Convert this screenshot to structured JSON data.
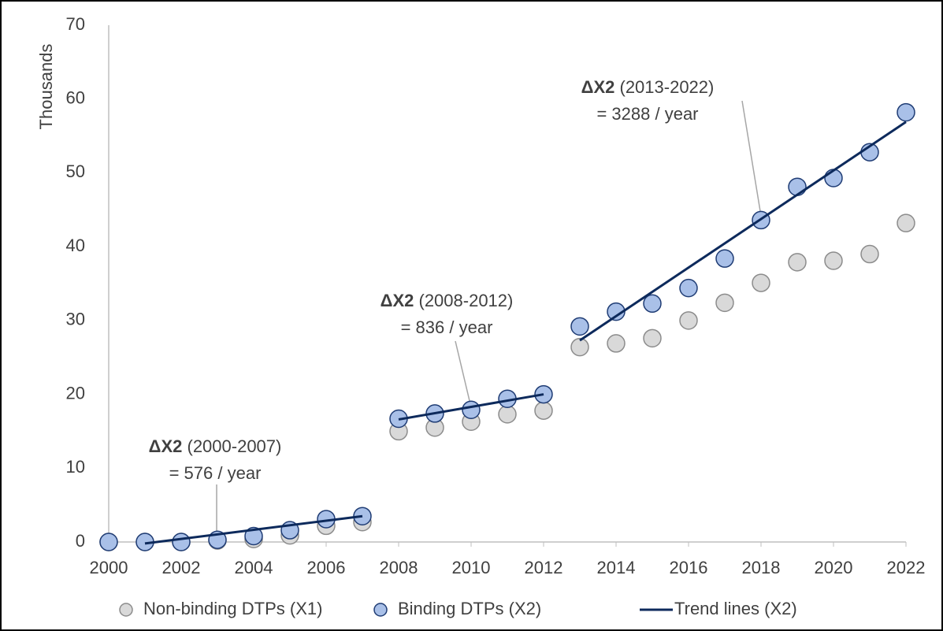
{
  "chart_data": {
    "type": "scatter",
    "ylabel": "Thousands",
    "xlim": [
      2000,
      2022
    ],
    "xticks": [
      2000,
      2002,
      2004,
      2006,
      2008,
      2010,
      2012,
      2014,
      2016,
      2018,
      2020,
      2022
    ],
    "ylim": [
      0,
      70
    ],
    "yticks": [
      0,
      10,
      20,
      30,
      40,
      50,
      60,
      70
    ],
    "grid": false,
    "legend": "bottom",
    "x": [
      2000,
      2001,
      2002,
      2003,
      2004,
      2005,
      2006,
      2007,
      2008,
      2009,
      2010,
      2011,
      2012,
      2013,
      2014,
      2015,
      2016,
      2017,
      2018,
      2019,
      2020,
      2021,
      2022
    ],
    "series": [
      {
        "name": "Non-binding DTPs (X1)",
        "color": "#d9d9d9",
        "stroke": "#8c8c8c",
        "values": [
          0,
          0,
          0,
          0.2,
          0.4,
          0.9,
          2.2,
          2.7,
          15.0,
          15.5,
          16.3,
          17.3,
          17.8,
          26.4,
          26.9,
          27.6,
          30.0,
          32.4,
          35.1,
          37.9,
          38.1,
          39.0,
          43.2
        ]
      },
      {
        "name": "Binding DTPs (X2)",
        "color": "#a9c0e8",
        "stroke": "#1f3c74",
        "values": [
          0,
          0,
          0,
          0.3,
          0.8,
          1.6,
          3.1,
          3.5,
          16.7,
          17.4,
          17.9,
          19.4,
          20.0,
          29.2,
          31.2,
          32.3,
          34.4,
          38.4,
          43.6,
          48.1,
          49.3,
          52.8,
          58.2
        ]
      }
    ],
    "trend": {
      "name": "Trend lines (X2)",
      "color": "#0d2a5c",
      "segments": [
        {
          "x": [
            2001,
            2007
          ],
          "values": [
            -0.2,
            3.5
          ]
        },
        {
          "x": [
            2008,
            2012
          ],
          "values": [
            16.6,
            20.0
          ]
        },
        {
          "x": [
            2013,
            2022
          ],
          "values": [
            27.3,
            56.9
          ]
        }
      ]
    },
    "annotations": [
      {
        "bold": "ΔX2",
        "text": " (2000-2007)",
        "line2": "= 576 / year"
      },
      {
        "bold": "ΔX2",
        "text": " (2008-2012)",
        "line2": "= 836 / year"
      },
      {
        "bold": "ΔX2",
        "text": " (2013-2022)",
        "line2": "= 3288 / year"
      }
    ]
  }
}
